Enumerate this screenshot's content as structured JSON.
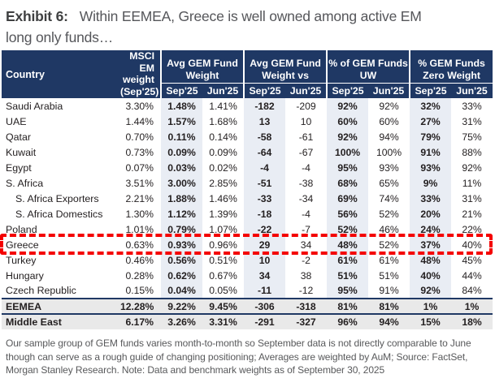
{
  "title": {
    "label": "Exhibit 6:",
    "text": "Within EEMEA, Greece is well owned among active EM long only funds…"
  },
  "colors": {
    "header_bg": "#1F3864",
    "sep_column_band": "#E9EDF4",
    "summary_row_bg": "#E9E9E9",
    "highlight_border": "#F40000",
    "muted_text": "#58595B"
  },
  "table": {
    "country_header": "Country",
    "msci_header_lines": [
      "MSCI EM",
      "weight",
      "(Sep'25)"
    ],
    "groups": [
      {
        "line1": "Avg GEM Fund",
        "line2": "Weight"
      },
      {
        "line1": "Avg GEM Fund",
        "line2": "Weight vs"
      },
      {
        "line1": "% of GEM Funds",
        "line2": "UW"
      },
      {
        "line1": "% GEM Funds",
        "line2": "Zero Weight"
      }
    ],
    "subheaders": [
      "Sep'25",
      "Jun'25",
      "Sep'25",
      "Jun'25",
      "Sep'25",
      "Jun'25",
      "Sep'25",
      "Jun'25"
    ],
    "rows": [
      {
        "name": "Saudi Arabia",
        "indent": false,
        "type": "data",
        "highlight": false,
        "msci": "3.30%",
        "values": [
          "1.48%",
          "1.41%",
          "-182",
          "-209",
          "92%",
          "92%",
          "32%",
          "33%"
        ]
      },
      {
        "name": "UAE",
        "indent": false,
        "type": "data",
        "highlight": false,
        "msci": "1.44%",
        "values": [
          "1.57%",
          "1.68%",
          "13",
          "10",
          "60%",
          "60%",
          "27%",
          "31%"
        ]
      },
      {
        "name": "Qatar",
        "indent": false,
        "type": "data",
        "highlight": false,
        "msci": "0.70%",
        "values": [
          "0.11%",
          "0.14%",
          "-58",
          "-61",
          "92%",
          "94%",
          "79%",
          "75%"
        ]
      },
      {
        "name": "Kuwait",
        "indent": false,
        "type": "data",
        "highlight": false,
        "msci": "0.73%",
        "values": [
          "0.09%",
          "0.09%",
          "-64",
          "-67",
          "100%",
          "100%",
          "91%",
          "88%"
        ]
      },
      {
        "name": "Egypt",
        "indent": false,
        "type": "data",
        "highlight": false,
        "msci": "0.07%",
        "values": [
          "0.03%",
          "0.02%",
          "-4",
          "-4",
          "95%",
          "93%",
          "93%",
          "92%"
        ]
      },
      {
        "name": "S. Africa",
        "indent": false,
        "type": "data",
        "highlight": false,
        "msci": "3.51%",
        "values": [
          "3.00%",
          "2.85%",
          "-51",
          "-38",
          "68%",
          "65%",
          "9%",
          "11%"
        ]
      },
      {
        "name": "S. Africa Exporters",
        "indent": true,
        "type": "data",
        "highlight": false,
        "msci": "2.21%",
        "values": [
          "1.88%",
          "1.46%",
          "-33",
          "-34",
          "69%",
          "74%",
          "33%",
          "31%"
        ]
      },
      {
        "name": "S. Africa Domestics",
        "indent": true,
        "type": "data",
        "highlight": false,
        "msci": "1.30%",
        "values": [
          "1.12%",
          "1.39%",
          "-18",
          "-4",
          "56%",
          "52%",
          "20%",
          "21%"
        ]
      },
      {
        "name": "Poland",
        "indent": false,
        "type": "data",
        "highlight": false,
        "msci": "1.01%",
        "values": [
          "0.79%",
          "1.07%",
          "-22",
          "-7",
          "52%",
          "46%",
          "24%",
          "22%"
        ]
      },
      {
        "name": "Greece",
        "indent": false,
        "type": "data",
        "highlight": true,
        "msci": "0.63%",
        "values": [
          "0.93%",
          "0.96%",
          "29",
          "34",
          "48%",
          "52%",
          "37%",
          "40%"
        ]
      },
      {
        "name": "Turkey",
        "indent": false,
        "type": "data",
        "highlight": false,
        "msci": "0.46%",
        "values": [
          "0.56%",
          "0.51%",
          "10",
          "-2",
          "61%",
          "61%",
          "48%",
          "45%"
        ]
      },
      {
        "name": "Hungary",
        "indent": false,
        "type": "data",
        "highlight": false,
        "msci": "0.28%",
        "values": [
          "0.62%",
          "0.67%",
          "34",
          "38",
          "51%",
          "51%",
          "40%",
          "44%"
        ]
      },
      {
        "name": "Czech Republic",
        "indent": false,
        "type": "data",
        "highlight": false,
        "msci": "0.15%",
        "values": [
          "0.04%",
          "0.05%",
          "-11",
          "-12",
          "95%",
          "91%",
          "92%",
          "84%"
        ]
      },
      {
        "name": "EEMEA",
        "indent": false,
        "type": "summary",
        "highlight": false,
        "msci": "12.28%",
        "values": [
          "9.22%",
          "9.45%",
          "-306",
          "-318",
          "81%",
          "81%",
          "1%",
          "1%"
        ]
      },
      {
        "name": "Middle East",
        "indent": false,
        "type": "summary",
        "highlight": false,
        "msci": "6.17%",
        "values": [
          "3.26%",
          "3.31%",
          "-291",
          "-327",
          "96%",
          "94%",
          "15%",
          "18%"
        ]
      }
    ]
  },
  "footer": "Our sample group of GEM funds varies month-to-month so September data is not directly comparable to June though can serve as a rough guide of changing positioning; Averages are weighted by AuM; Source: FactSet, Morgan Stanley Research. Note: Data and benchmark weights as of September 30, 2025"
}
